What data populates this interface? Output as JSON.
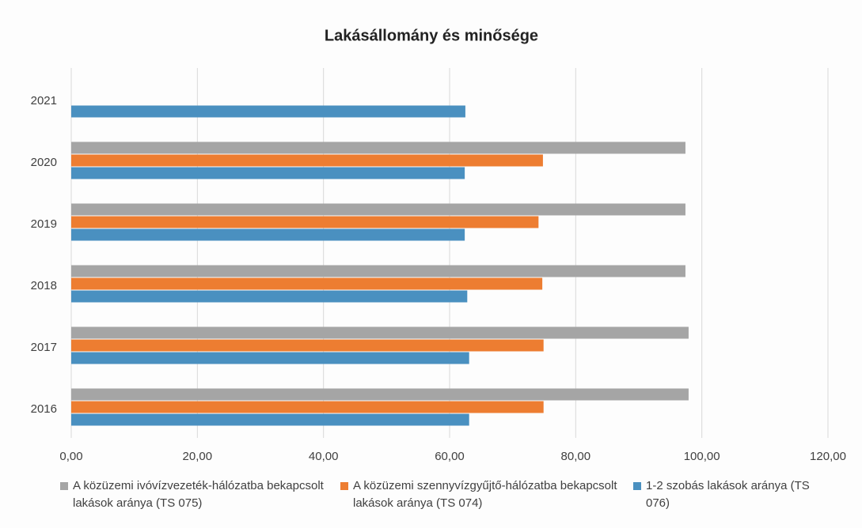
{
  "chart_data": {
    "type": "bar",
    "orientation": "horizontal",
    "title": "Lakásállomány és minősége",
    "categories": [
      "2016",
      "2017",
      "2018",
      "2019",
      "2020",
      "2021"
    ],
    "series": [
      {
        "name": "A közüzemi ivóvízvezeték-hálózatba bekapcsolt lakások aránya (TS 075)",
        "color": "#a5a5a5",
        "values": [
          97.9,
          97.9,
          97.4,
          97.4,
          97.4,
          null
        ]
      },
      {
        "name": "A közüzemi szennyvízgyűjtő-hálózatba bekapcsolt lakások aránya (TS 074)",
        "color": "#ed7d31",
        "values": [
          74.9,
          74.9,
          74.7,
          74.1,
          74.8,
          null
        ]
      },
      {
        "name": "1-2 szobás lakások aránya (TS 076)",
        "color": "#4a90c0",
        "values": [
          63.1,
          63.1,
          62.8,
          62.4,
          62.4,
          62.5
        ]
      }
    ],
    "xlim": [
      0,
      120
    ],
    "xticks": [
      {
        "value": 0,
        "label": "0,00"
      },
      {
        "value": 20,
        "label": "20,00"
      },
      {
        "value": 40,
        "label": "40,00"
      },
      {
        "value": 60,
        "label": "60,00"
      },
      {
        "value": 80,
        "label": "80,00"
      },
      {
        "value": 100,
        "label": "100,00"
      },
      {
        "value": 120,
        "label": "120,00"
      }
    ],
    "grid": true,
    "legend": "bottom"
  }
}
